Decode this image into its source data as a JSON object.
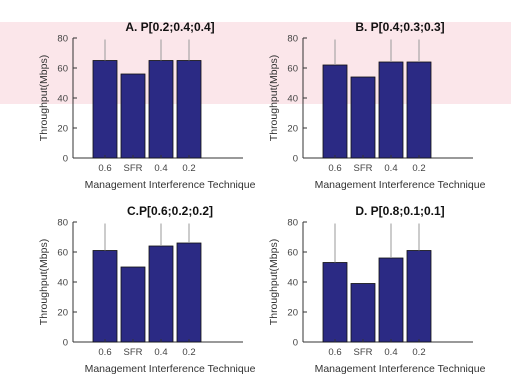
{
  "chart_data": [
    {
      "type": "bar",
      "title": "A. P[0.2;0.4;0.4]",
      "xlabel": "Management Interference Technique",
      "ylabel": "Throughput(Mbps)",
      "categories": [
        "0.6",
        "SFR",
        "0.4",
        "0.2"
      ],
      "values": [
        65,
        56,
        65,
        65
      ],
      "error_upper": [
        79,
        56,
        79,
        79
      ],
      "ylim": [
        0,
        80
      ],
      "yticks": [
        0,
        20,
        40,
        60,
        80
      ],
      "bar_color": "#2b2a84",
      "grid": false,
      "legend": "none"
    },
    {
      "type": "bar",
      "title": "B. P[0.4;0.3;0.3]",
      "xlabel": "Management Interference Technique",
      "ylabel": "Throughput(Mbps)",
      "categories": [
        "0.6",
        "SFR",
        "0.4",
        "0.2"
      ],
      "values": [
        62,
        54,
        64,
        64
      ],
      "error_upper": [
        79,
        54,
        79,
        79
      ],
      "ylim": [
        0,
        80
      ],
      "yticks": [
        0,
        20,
        40,
        60,
        80
      ],
      "bar_color": "#2b2a84",
      "grid": false,
      "legend": "none"
    },
    {
      "type": "bar",
      "title": "C.P[0.6;0.2;0.2]",
      "xlabel": "Management Interference Technique",
      "ylabel": "Throughput(Mbps)",
      "categories": [
        "0.6",
        "SFR",
        "0.4",
        "0.2"
      ],
      "values": [
        61,
        50,
        64,
        66
      ],
      "error_upper": [
        79,
        50,
        79,
        79
      ],
      "ylim": [
        0,
        80
      ],
      "yticks": [
        0,
        20,
        40,
        60,
        80
      ],
      "bar_color": "#2b2a84",
      "grid": false,
      "legend": "none"
    },
    {
      "type": "bar",
      "title": "D. P[0.8;0.1;0.1]",
      "xlabel": "Management Interference Technique",
      "ylabel": "Throughput(Mbps)",
      "categories": [
        "0.6",
        "SFR",
        "0.4",
        "0.2"
      ],
      "values": [
        53,
        39,
        56,
        61
      ],
      "error_upper": [
        79,
        39,
        79,
        79
      ],
      "ylim": [
        0,
        80
      ],
      "yticks": [
        0,
        20,
        40,
        60,
        80
      ],
      "bar_color": "#2b2a84",
      "grid": false,
      "legend": "none"
    }
  ]
}
